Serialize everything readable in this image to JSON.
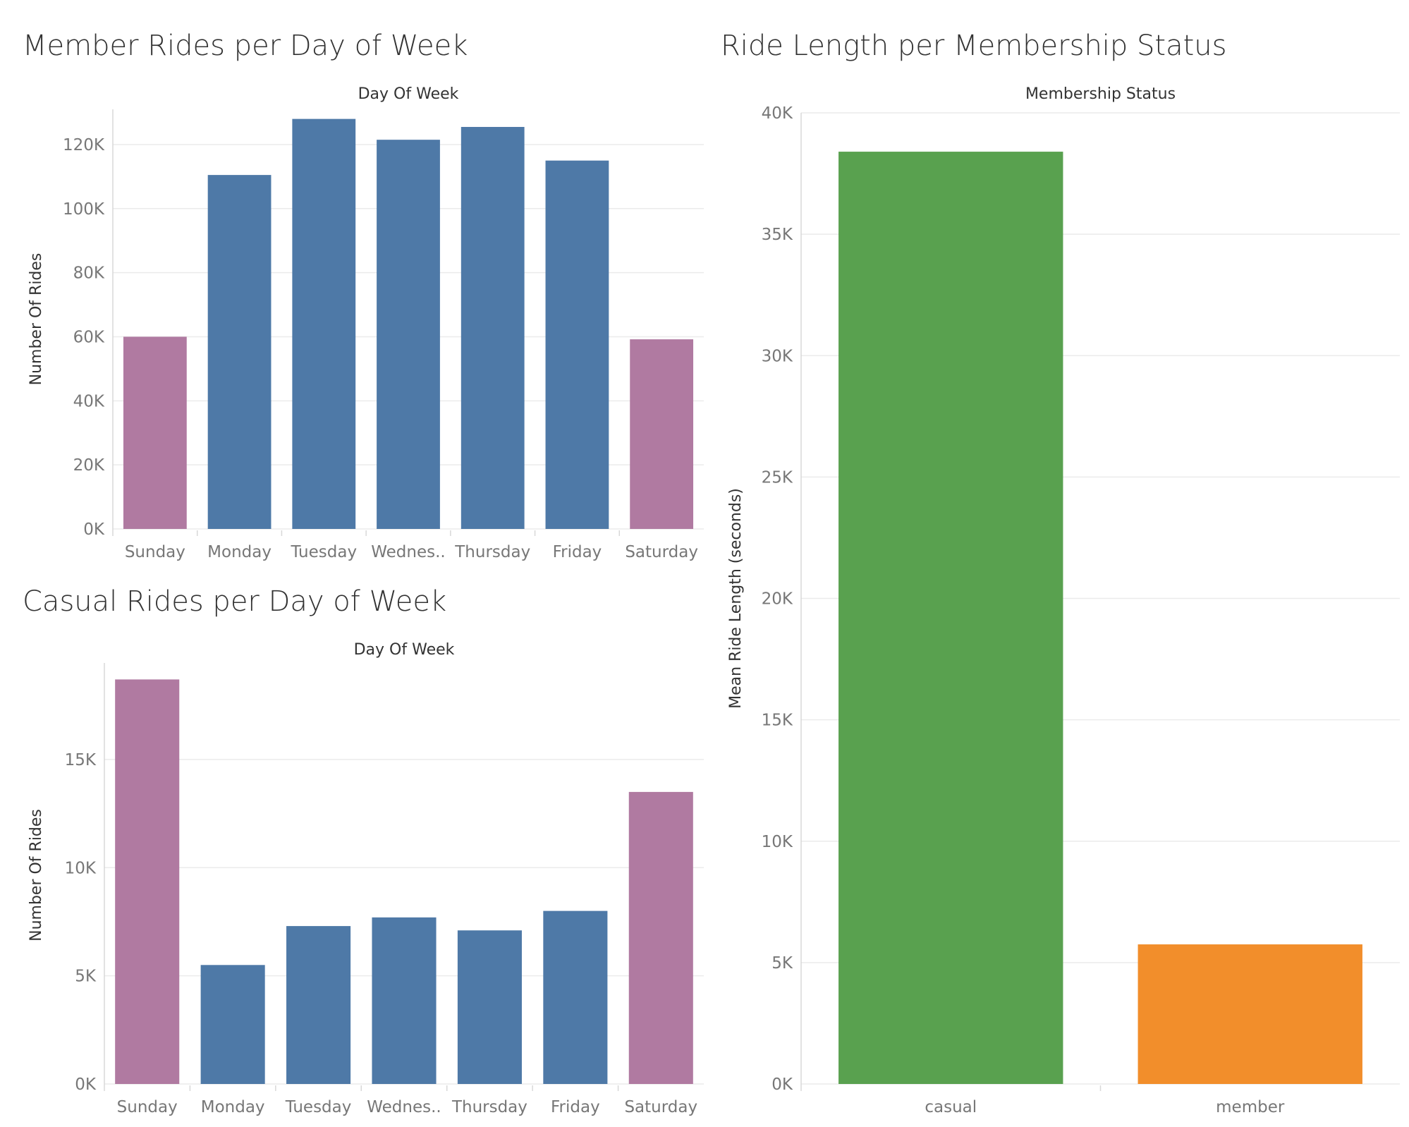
{
  "colors": {
    "weekend": "#b07aa1",
    "weekday": "#4e79a7",
    "casual": "#59a14f",
    "member": "#f28e2b"
  },
  "chart_data": [
    {
      "id": "member",
      "type": "bar",
      "title": "Member Rides per Day of Week",
      "column_header": "Day Of Week",
      "ylabel": "Number Of Rides",
      "categories": [
        "Sunday",
        "Monday",
        "Tuesday",
        "Wednes..",
        "Thursday",
        "Friday",
        "Saturday"
      ],
      "values": [
        60000,
        110500,
        128000,
        121500,
        125500,
        115000,
        59200
      ],
      "bar_colors": [
        "weekend",
        "weekday",
        "weekday",
        "weekday",
        "weekday",
        "weekday",
        "weekend"
      ],
      "ylim": [
        0,
        131000
      ],
      "yticks": [
        0,
        20000,
        40000,
        60000,
        80000,
        100000,
        120000
      ],
      "ytick_labels": [
        "0K",
        "20K",
        "40K",
        "60K",
        "80K",
        "100K",
        "120K"
      ],
      "grid": true
    },
    {
      "id": "casual",
      "type": "bar",
      "title": "Casual Rides per Day of Week",
      "column_header": "Day Of Week",
      "ylabel": "Number Of Rides",
      "categories": [
        "Sunday",
        "Monday",
        "Tuesday",
        "Wednes..",
        "Thursday",
        "Friday",
        "Saturday"
      ],
      "values": [
        18700,
        5500,
        7300,
        7700,
        7100,
        8000,
        13500
      ],
      "bar_colors": [
        "weekend",
        "weekday",
        "weekday",
        "weekday",
        "weekday",
        "weekday",
        "weekend"
      ],
      "ylim": [
        0,
        19300
      ],
      "yticks": [
        0,
        5000,
        10000,
        15000
      ],
      "ytick_labels": [
        "0K",
        "5K",
        "10K",
        "15K"
      ],
      "grid": true
    },
    {
      "id": "length",
      "type": "bar",
      "title": "Ride Length per Membership Status",
      "column_header": "Membership Status",
      "ylabel": "Mean Ride Length (seconds)",
      "categories": [
        "casual",
        "member"
      ],
      "values": [
        38400,
        5750
      ],
      "bar_colors": [
        "casual",
        "member"
      ],
      "ylim": [
        0,
        40000
      ],
      "yticks": [
        0,
        5000,
        10000,
        15000,
        20000,
        25000,
        30000,
        35000,
        40000
      ],
      "ytick_labels": [
        "0K",
        "5K",
        "10K",
        "15K",
        "20K",
        "25K",
        "30K",
        "35K",
        "40K"
      ],
      "grid": true
    }
  ]
}
